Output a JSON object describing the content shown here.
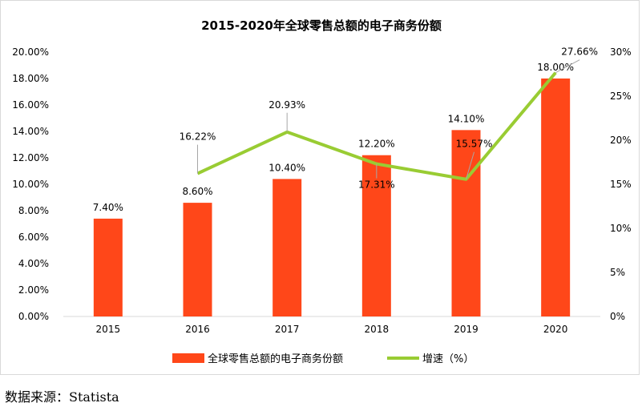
{
  "chart_data": {
    "type": "bar",
    "title": "2015-2020年全球零售总额的电子商务份额",
    "categories": [
      "2015",
      "2016",
      "2017",
      "2018",
      "2019",
      "2020"
    ],
    "series": [
      {
        "name": "全球零售总额的电子商务份额",
        "type": "bar",
        "axis": "left",
        "color": "#ff4719",
        "values": [
          7.4,
          8.6,
          10.4,
          12.2,
          14.1,
          18.0
        ],
        "labels": [
          "7.40%",
          "8.60%",
          "10.40%",
          "12.20%",
          "14.10%",
          "18.00%"
        ]
      },
      {
        "name": "增速（%）",
        "type": "line",
        "axis": "right",
        "color": "#99cc33",
        "values": [
          null,
          16.22,
          20.93,
          17.31,
          15.57,
          27.66
        ],
        "labels": [
          "",
          "16.22%",
          "20.93%",
          "17.31%",
          "15.57%",
          "27.66%"
        ]
      }
    ],
    "y_left": {
      "ylim": [
        0,
        20
      ],
      "ticks": [
        "0.00%",
        "2.00%",
        "4.00%",
        "6.00%",
        "8.00%",
        "10.00%",
        "12.00%",
        "14.00%",
        "16.00%",
        "18.00%",
        "20.00%"
      ]
    },
    "y_right": {
      "ylim": [
        0,
        30
      ],
      "ticks": [
        "0%",
        "5%",
        "10%",
        "15%",
        "20%",
        "25%",
        "30%"
      ]
    },
    "grid": false,
    "legend_position": "bottom"
  },
  "source": "数据来源：Statista"
}
